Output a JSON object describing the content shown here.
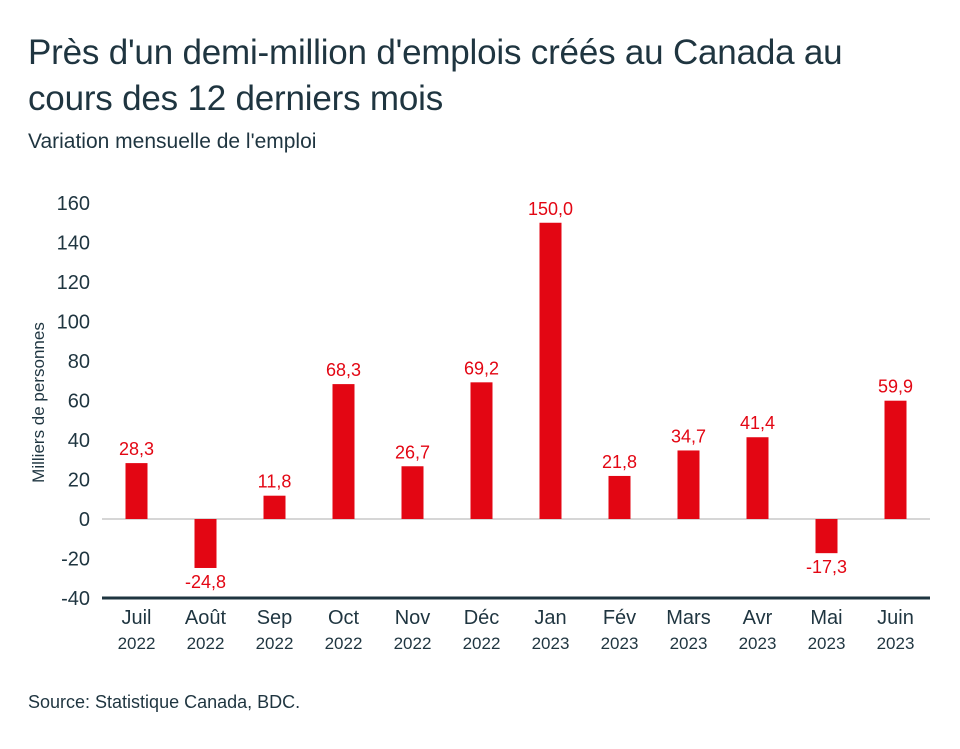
{
  "title": "Près d'un demi-million d'emplois créés au Canada au cours des 12 derniers mois",
  "subtitle": "Variation mensuelle de l'emploi",
  "source": "Source: Statistique Canada, BDC.",
  "colors": {
    "bar": "#e30613",
    "axis": "#1f3540",
    "zero_line": "#c8c8c8",
    "text": "#1f3540"
  },
  "chart_data": {
    "type": "bar",
    "title": "Près d'un demi-million d'emplois créés au Canada au cours des 12 derniers mois",
    "subtitle": "Variation mensuelle de l'emploi",
    "xlabel": "",
    "ylabel": "Milliers de personnes",
    "ylim": [
      -40,
      160
    ],
    "yticks": [
      160,
      140,
      120,
      100,
      80,
      60,
      40,
      20,
      0,
      -20,
      -40
    ],
    "ytick_labels": [
      "160",
      "140",
      "120",
      "100",
      "80",
      "60",
      "40",
      "20",
      "0",
      "-20",
      "-40"
    ],
    "grid": false,
    "categories": [
      "Juil",
      "Août",
      "Sep",
      "Oct",
      "Nov",
      "Déc",
      "Jan",
      "Fév",
      "Mars",
      "Avr",
      "Mai",
      "Juin"
    ],
    "years": [
      "2022",
      "2022",
      "2022",
      "2022",
      "2022",
      "2022",
      "2023",
      "2023",
      "2023",
      "2023",
      "2023",
      "2023"
    ],
    "values": [
      28.3,
      -24.8,
      11.8,
      68.3,
      26.7,
      69.2,
      150.0,
      21.8,
      34.7,
      41.4,
      -17.3,
      59.9
    ],
    "value_labels": [
      "28,3",
      "-24,8",
      "11,8",
      "68,3",
      "26,7",
      "69,2",
      "150,0",
      "21,8",
      "34,7",
      "41,4",
      "-17,3",
      "59,9"
    ]
  }
}
